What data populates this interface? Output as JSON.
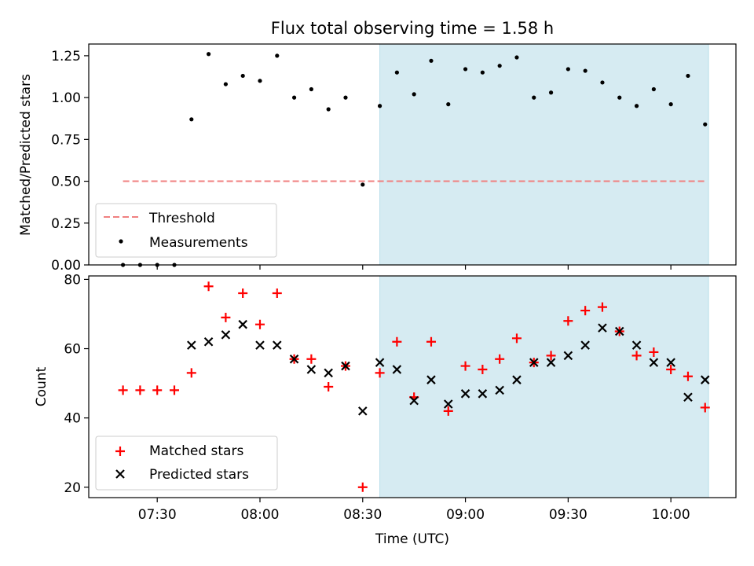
{
  "chart_data": {
    "title": "Flux total observing time = 1.58 h",
    "xlabel": "Time (UTC)",
    "x_ticks": [
      "07:30",
      "08:00",
      "08:30",
      "09:00",
      "09:30",
      "10:00"
    ],
    "x_tick_minutes": [
      450,
      480,
      510,
      540,
      570,
      600
    ],
    "xlim_minutes": [
      430,
      619
    ],
    "shaded_span_minutes": [
      515,
      611
    ],
    "shade_color": "#add8e6",
    "times_minutes": [
      440,
      445,
      450,
      455,
      460,
      465,
      470,
      475,
      480,
      485,
      490,
      495,
      500,
      505,
      510,
      515,
      520,
      525,
      530,
      535,
      540,
      545,
      550,
      555,
      560,
      565,
      570,
      575,
      580,
      585,
      590,
      595,
      600,
      605,
      610
    ],
    "panels": [
      {
        "type": "scatter",
        "ylabel": "Matched/Predicted stars",
        "ylim": [
          0,
          1.32
        ],
        "y_ticks": [
          "0.00",
          "0.25",
          "0.50",
          "0.75",
          "1.00",
          "1.25"
        ],
        "y_tick_values": [
          0,
          0.25,
          0.5,
          0.75,
          1.0,
          1.25
        ],
        "threshold": {
          "label": "Threshold",
          "value": 0.5,
          "color": "#f08080",
          "x_range_minutes": [
            440,
            610
          ]
        },
        "series": [
          {
            "name": "Measurements",
            "marker": "dot",
            "color": "#000000",
            "values": [
              0,
              0,
              0,
              0,
              0.87,
              1.26,
              1.08,
              1.13,
              1.1,
              1.25,
              1.0,
              1.05,
              0.93,
              1.0,
              0.48,
              0.95,
              1.15,
              1.02,
              1.22,
              0.96,
              1.17,
              1.15,
              1.19,
              1.24,
              1.0,
              1.03,
              1.17,
              1.16,
              1.09,
              1.0,
              0.95,
              1.05,
              0.96,
              1.13,
              0.84
            ]
          }
        ],
        "legend": [
          "Threshold",
          "Measurements"
        ],
        "legend_loc": "lower-left"
      },
      {
        "type": "scatter",
        "ylabel": "Count",
        "ylim": [
          17,
          81
        ],
        "y_ticks": [
          "20",
          "40",
          "60",
          "80"
        ],
        "y_tick_values": [
          20,
          40,
          60,
          80
        ],
        "series": [
          {
            "name": "Matched stars",
            "marker": "plus",
            "color": "#ff0000",
            "values": [
              48,
              48,
              48,
              48,
              53,
              78,
              69,
              76,
              67,
              76,
              57,
              57,
              49,
              55,
              20,
              53,
              62,
              46,
              62,
              42,
              55,
              54,
              57,
              63,
              56,
              58,
              68,
              71,
              72,
              65,
              58,
              59,
              54,
              52,
              43
            ]
          },
          {
            "name": "Predicted stars",
            "marker": "x",
            "color": "#000000",
            "values": [
              null,
              null,
              null,
              null,
              61,
              62,
              64,
              67,
              61,
              61,
              57,
              54,
              53,
              55,
              42,
              56,
              54,
              45,
              51,
              44,
              47,
              47,
              48,
              51,
              56,
              56,
              58,
              61,
              66,
              65,
              61,
              56,
              56,
              46,
              51
            ]
          }
        ],
        "legend": [
          "Matched stars",
          "Predicted stars"
        ],
        "legend_loc": "lower-left"
      }
    ]
  }
}
